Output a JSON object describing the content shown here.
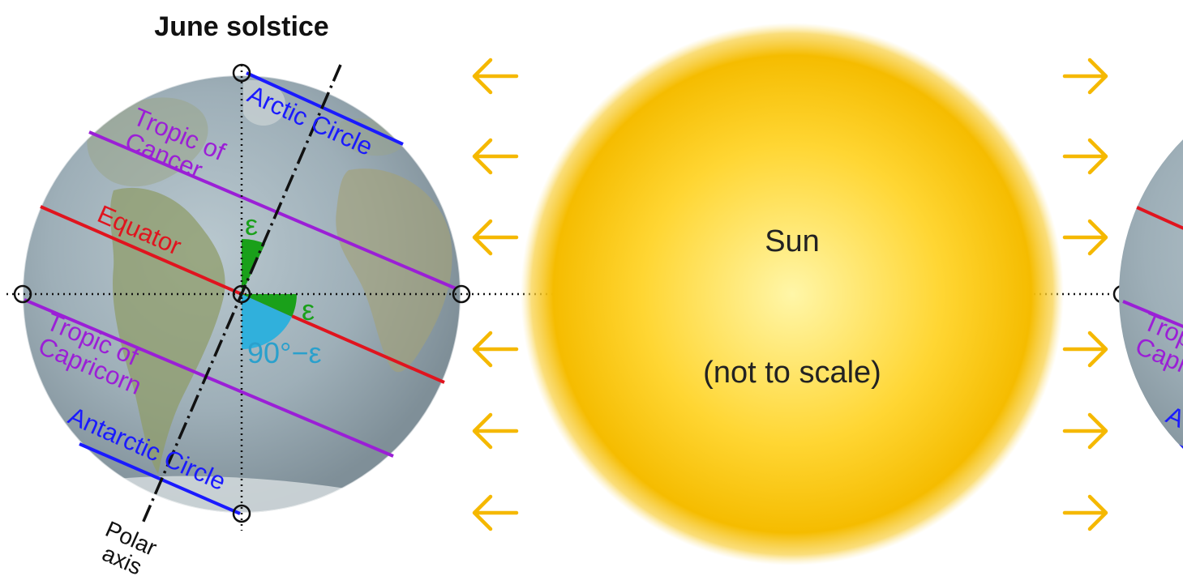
{
  "title": "June solstice",
  "sun": {
    "name": "Sun",
    "note": "(not to scale)"
  },
  "labels": {
    "arctic_circle": "Arctic Circle",
    "tropic_of_cancer_line1": "Tropic of",
    "tropic_of_cancer_line2": "Cancer",
    "equator": "Equator",
    "tropic_of_capricorn_line1": "Tropic of",
    "tropic_of_capricorn_line2": "Capricorn",
    "antarctic_circle": "Antarctic Circle",
    "polar_axis_line1": "Polar",
    "polar_axis_line2": "axis",
    "epsilon_upper": "ε",
    "epsilon_lower": "ε",
    "complement_angle": "90°−ε"
  },
  "right_globe_partial": {
    "tropic_fragment_line1": "Trop",
    "tropic_fragment_line2": "Capr",
    "antarctic_fragment": "A"
  },
  "colors": {
    "arctic": "#1a1aff",
    "tropic": "#9b1fd6",
    "equator": "#e0141e",
    "epsilon": "#1aa01a",
    "complement": "#28a0d0",
    "arrow": "#f5b800",
    "sun_core": "#fff4a0",
    "sun_edge": "#f2b800"
  },
  "arrows": {
    "left_direction": "left-arrow-icon",
    "right_direction": "right-arrow-icon"
  }
}
